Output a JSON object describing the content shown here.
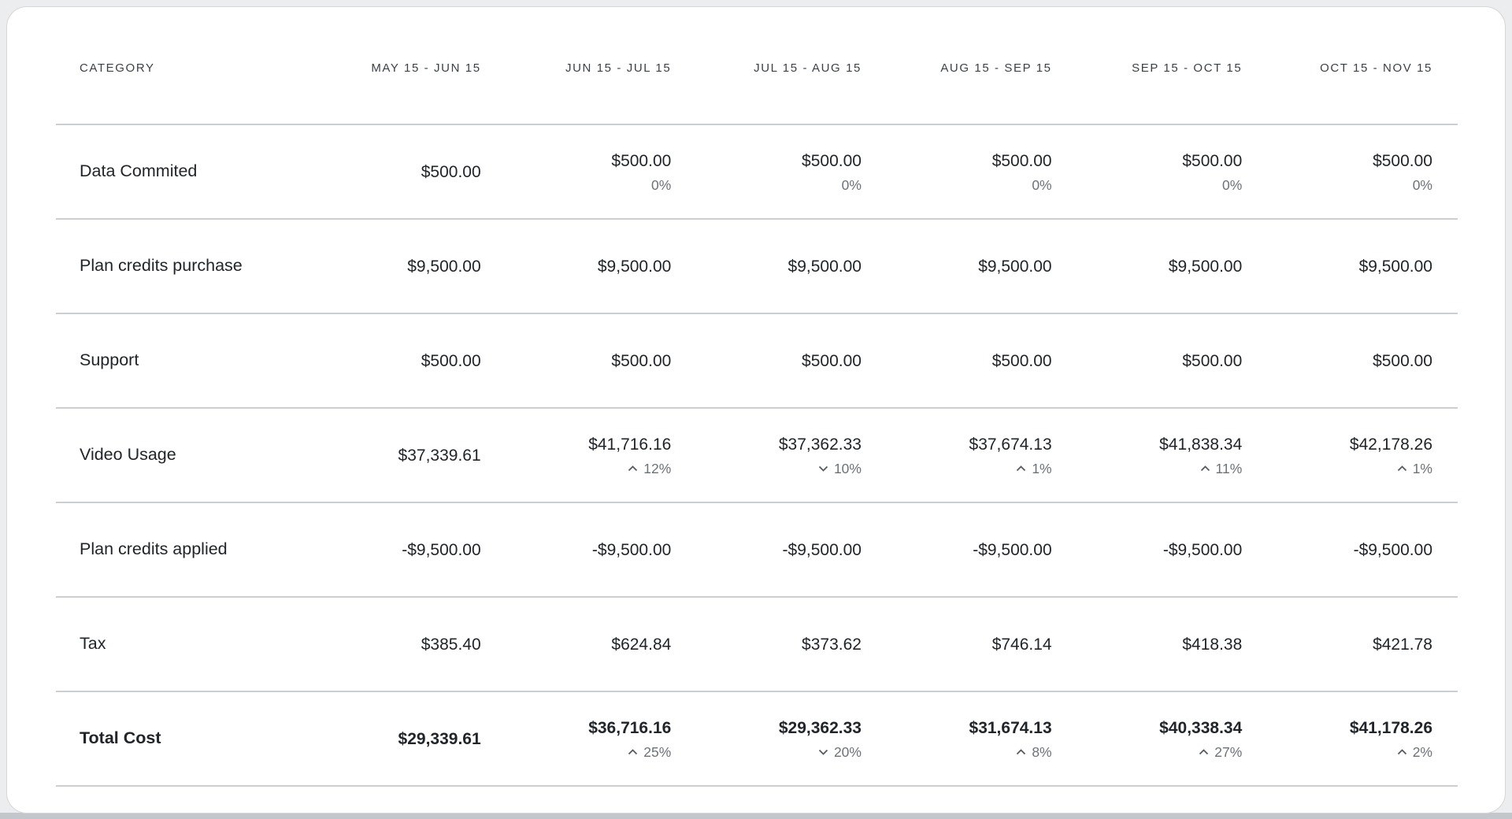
{
  "card": {
    "title": "billing-breakdown-table"
  },
  "colors": {
    "page-bg": "#ebedef",
    "card-bg": "#ffffff",
    "card-border": "#d4d7db",
    "divider": "#cbcfd4",
    "text": "#212529",
    "muted": "#6c7277",
    "chevron": "#565b60",
    "bottom-bar": "#c3c7cc"
  },
  "icons": {
    "trend_up": "chevron-up-icon",
    "trend_down": "chevron-down-icon"
  },
  "table": {
    "headers": [
      "CATEGORY",
      "MAY 15 - JUN 15",
      "JUN 15 - JUL 15",
      "JUL 15 - AUG 15",
      "AUG 15 - SEP 15",
      "SEP 15 - OCT 15",
      "OCT 15 - NOV 15"
    ],
    "rows": [
      {
        "category": "Data Commited",
        "bold": false,
        "cells": [
          {
            "value": "$500.00"
          },
          {
            "value": "$500.00",
            "pct": "0%",
            "trend": "none"
          },
          {
            "value": "$500.00",
            "pct": "0%",
            "trend": "none"
          },
          {
            "value": "$500.00",
            "pct": "0%",
            "trend": "none"
          },
          {
            "value": "$500.00",
            "pct": "0%",
            "trend": "none"
          },
          {
            "value": "$500.00",
            "pct": "0%",
            "trend": "none"
          }
        ]
      },
      {
        "category": "Plan credits purchase",
        "bold": false,
        "cells": [
          {
            "value": "$9,500.00"
          },
          {
            "value": "$9,500.00"
          },
          {
            "value": "$9,500.00"
          },
          {
            "value": "$9,500.00"
          },
          {
            "value": "$9,500.00"
          },
          {
            "value": "$9,500.00"
          }
        ]
      },
      {
        "category": "Support",
        "bold": false,
        "cells": [
          {
            "value": "$500.00"
          },
          {
            "value": "$500.00"
          },
          {
            "value": "$500.00"
          },
          {
            "value": "$500.00"
          },
          {
            "value": "$500.00"
          },
          {
            "value": "$500.00"
          }
        ]
      },
      {
        "category": "Video Usage",
        "bold": false,
        "cells": [
          {
            "value": "$37,339.61"
          },
          {
            "value": "$41,716.16",
            "pct": "12%",
            "trend": "up"
          },
          {
            "value": "$37,362.33",
            "pct": "10%",
            "trend": "down"
          },
          {
            "value": "$37,674.13",
            "pct": "1%",
            "trend": "up"
          },
          {
            "value": "$41,838.34",
            "pct": "11%",
            "trend": "up"
          },
          {
            "value": "$42,178.26",
            "pct": "1%",
            "trend": "up"
          }
        ]
      },
      {
        "category": "Plan credits applied",
        "bold": false,
        "cells": [
          {
            "value": "-$9,500.00"
          },
          {
            "value": "-$9,500.00"
          },
          {
            "value": "-$9,500.00"
          },
          {
            "value": "-$9,500.00"
          },
          {
            "value": "-$9,500.00"
          },
          {
            "value": "-$9,500.00"
          }
        ]
      },
      {
        "category": "Tax",
        "bold": false,
        "cells": [
          {
            "value": "$385.40"
          },
          {
            "value": "$624.84"
          },
          {
            "value": "$373.62"
          },
          {
            "value": "$746.14"
          },
          {
            "value": "$418.38"
          },
          {
            "value": "$421.78"
          }
        ]
      },
      {
        "category": "Total Cost",
        "bold": true,
        "cells": [
          {
            "value": "$29,339.61"
          },
          {
            "value": "$36,716.16",
            "pct": "25%",
            "trend": "up"
          },
          {
            "value": "$29,362.33",
            "pct": "20%",
            "trend": "down"
          },
          {
            "value": "$31,674.13",
            "pct": "8%",
            "trend": "up"
          },
          {
            "value": "$40,338.34",
            "pct": "27%",
            "trend": "up"
          },
          {
            "value": "$41,178.26",
            "pct": "2%",
            "trend": "up"
          }
        ]
      }
    ]
  }
}
